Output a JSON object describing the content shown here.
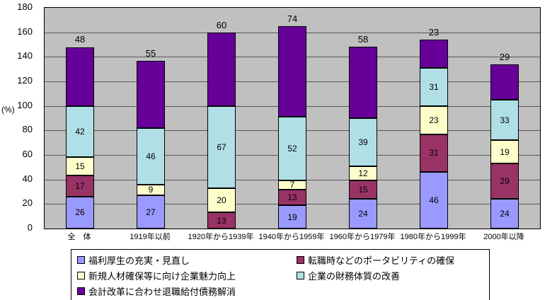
{
  "chart_data": {
    "type": "bar",
    "stacked": true,
    "title": "",
    "xlabel": "",
    "ylabel": "(%)",
    "ylim": [
      0,
      180
    ],
    "ytick_step": 20,
    "y_ticks": [
      0,
      20,
      40,
      60,
      80,
      100,
      120,
      140,
      160,
      180
    ],
    "grid": true,
    "plot_background": "#C0C0C0",
    "gridline_color": "#000000",
    "value_label_color": "#000000",
    "legend_position": "bottom",
    "last_series_labels_above_bar": true,
    "categories": [
      "全　体",
      "1919年以前",
      "1920年から1939年",
      "1940年から1959年",
      "1960年から1979年",
      "1980年から1999年",
      "2000年以降"
    ],
    "series": [
      {
        "name": "福利厚生の充実・見直し",
        "color": "#9999FF",
        "values": [
          26,
          27,
          0,
          19,
          24,
          46,
          24
        ]
      },
      {
        "name": "転職時などのポータビリティの確保",
        "color": "#993366",
        "values": [
          17,
          0,
          13,
          13,
          15,
          31,
          29
        ]
      },
      {
        "name": "新規人材確保等に向け企業魅力向上",
        "color": "#FFFFCC",
        "values": [
          15,
          9,
          20,
          7,
          12,
          23,
          19
        ]
      },
      {
        "name": "企業の財務体質の改善",
        "color": "#B0E0E6",
        "values": [
          42,
          46,
          67,
          52,
          39,
          31,
          33
        ]
      },
      {
        "name": "会計改革に合わせ退職給付債務解消",
        "color": "#660099",
        "values": [
          48,
          55,
          60,
          74,
          58,
          23,
          29
        ]
      }
    ],
    "bar_totals": [
      148,
      137,
      160,
      165,
      148,
      154,
      134
    ]
  }
}
